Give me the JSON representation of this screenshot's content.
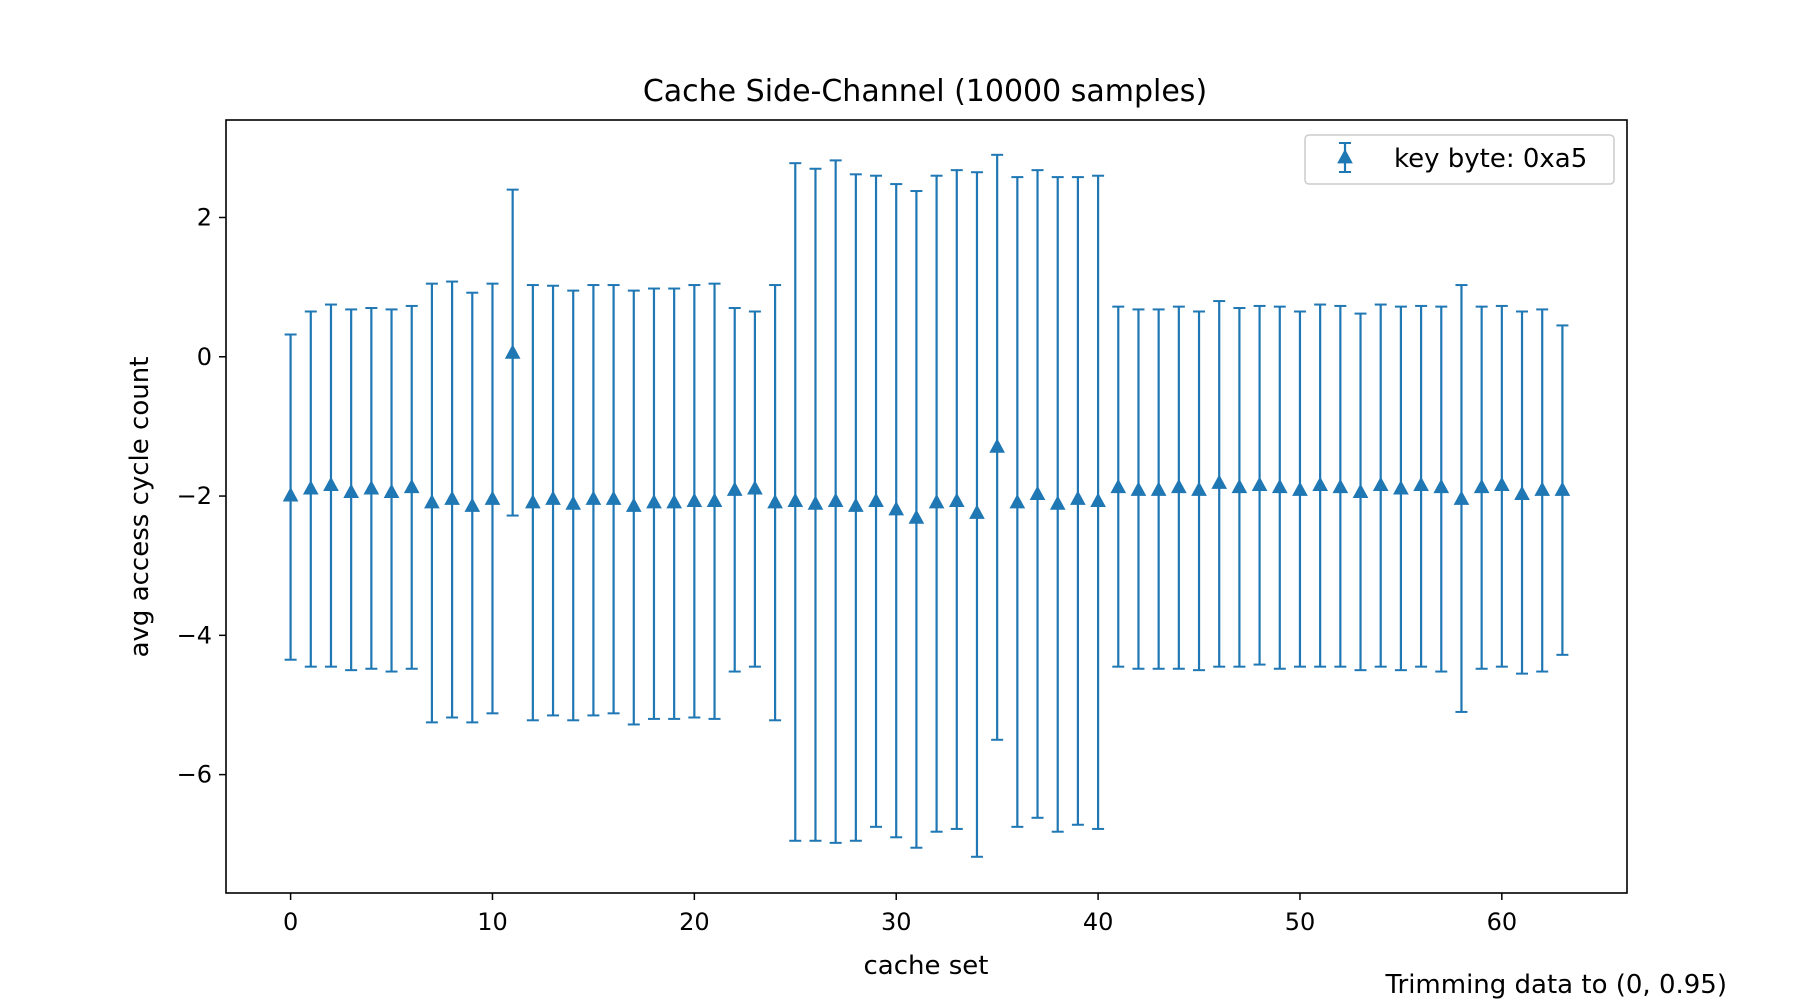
{
  "chart_data": {
    "type": "scatter",
    "title": "Cache Side-Channel (10000 samples)",
    "xlabel": "cache set",
    "ylabel": "avg access cycle count",
    "xlim": [
      -3.2,
      66.2
    ],
    "ylim": [
      -7.7,
      3.4
    ],
    "xticks": [
      0,
      10,
      20,
      30,
      40,
      50,
      60
    ],
    "yticks": [
      -6,
      -4,
      -2,
      0,
      2
    ],
    "grid": false,
    "legend_position": "upper-right",
    "color": "#1f77b4",
    "marker": "triangle-up",
    "series": [
      {
        "name": "key byte: 0xa5",
        "x": [
          0,
          1,
          2,
          3,
          4,
          5,
          6,
          7,
          8,
          9,
          10,
          11,
          12,
          13,
          14,
          15,
          16,
          17,
          18,
          19,
          20,
          21,
          22,
          23,
          24,
          25,
          26,
          27,
          28,
          29,
          30,
          31,
          32,
          33,
          34,
          35,
          36,
          37,
          38,
          39,
          40,
          41,
          42,
          43,
          44,
          45,
          46,
          47,
          48,
          49,
          50,
          51,
          52,
          53,
          54,
          55,
          56,
          57,
          58,
          59,
          60,
          61,
          62,
          63
        ],
        "y": [
          -2.0,
          -1.9,
          -1.85,
          -1.95,
          -1.9,
          -1.95,
          -1.88,
          -2.1,
          -2.05,
          -2.15,
          -2.05,
          0.05,
          -2.1,
          -2.05,
          -2.12,
          -2.05,
          -2.05,
          -2.15,
          -2.1,
          -2.1,
          -2.08,
          -2.08,
          -1.92,
          -1.9,
          -2.1,
          -2.08,
          -2.12,
          -2.08,
          -2.15,
          -2.08,
          -2.2,
          -2.32,
          -2.1,
          -2.08,
          -2.25,
          -1.3,
          -2.1,
          -1.98,
          -2.12,
          -2.05,
          -2.08,
          -1.88,
          -1.92,
          -1.92,
          -1.88,
          -1.92,
          -1.82,
          -1.88,
          -1.85,
          -1.88,
          -1.92,
          -1.85,
          -1.88,
          -1.95,
          -1.85,
          -1.9,
          -1.85,
          -1.88,
          -2.05,
          -1.88,
          -1.85,
          -1.98,
          -1.92,
          -1.92
        ],
        "yerr_low": [
          -4.35,
          -4.45,
          -4.45,
          -4.5,
          -4.48,
          -4.52,
          -4.48,
          -5.25,
          -5.18,
          -5.25,
          -5.12,
          -2.28,
          -5.22,
          -5.15,
          -5.22,
          -5.15,
          -5.12,
          -5.28,
          -5.2,
          -5.2,
          -5.18,
          -5.2,
          -4.52,
          -4.45,
          -5.22,
          -6.95,
          -6.95,
          -6.98,
          -6.95,
          -6.75,
          -6.9,
          -7.05,
          -6.82,
          -6.78,
          -7.18,
          -5.5,
          -6.75,
          -6.62,
          -6.82,
          -6.72,
          -6.78,
          -4.45,
          -4.48,
          -4.48,
          -4.48,
          -4.5,
          -4.45,
          -4.45,
          -4.42,
          -4.48,
          -4.45,
          -4.45,
          -4.45,
          -4.5,
          -4.45,
          -4.5,
          -4.45,
          -4.52,
          -5.1,
          -4.48,
          -4.45,
          -4.55,
          -4.52,
          -4.28
        ],
        "yerr_high": [
          0.32,
          0.65,
          0.75,
          0.68,
          0.7,
          0.68,
          0.73,
          1.05,
          1.08,
          0.92,
          1.05,
          2.4,
          1.03,
          1.02,
          0.95,
          1.03,
          1.03,
          0.95,
          0.98,
          0.98,
          1.03,
          1.05,
          0.7,
          0.65,
          1.03,
          2.78,
          2.7,
          2.82,
          2.62,
          2.6,
          2.48,
          2.38,
          2.6,
          2.68,
          2.65,
          2.9,
          2.58,
          2.68,
          2.58,
          2.58,
          2.6,
          0.72,
          0.68,
          0.68,
          0.72,
          0.65,
          0.8,
          0.7,
          0.73,
          0.72,
          0.65,
          0.75,
          0.73,
          0.62,
          0.75,
          0.72,
          0.73,
          0.72,
          1.03,
          0.72,
          0.73,
          0.65,
          0.68,
          0.45
        ]
      }
    ],
    "footnote": "Trimming data to (0, 0.95)"
  }
}
